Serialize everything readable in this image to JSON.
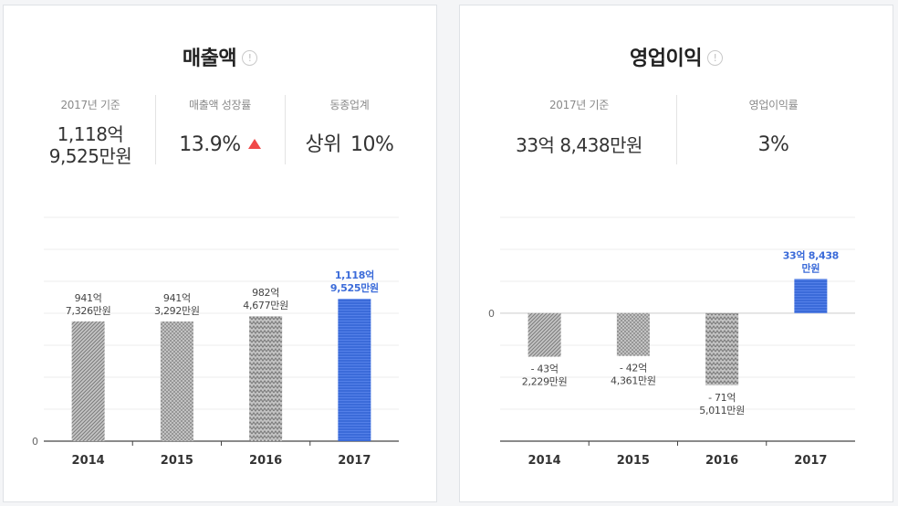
{
  "revenue": {
    "title": "매출액",
    "info_icon": "info-icon",
    "info_glyph": "!",
    "stats": [
      {
        "label": "2017년 기준",
        "lines": [
          "1,118억",
          "9,525만원"
        ]
      },
      {
        "label": "매출액 성장률",
        "value": "13.9%",
        "trend_icon": "up-triangle-icon",
        "trend_color": "#f04848"
      },
      {
        "label": "동종업계",
        "prefix": "상위",
        "value": "10%"
      }
    ]
  },
  "profit": {
    "title": "영업이익",
    "info_icon": "info-icon",
    "info_glyph": "!",
    "stats": [
      {
        "label": "2017년 기준",
        "value": "33억 8,438만원"
      },
      {
        "label": "영업이익률",
        "value": "3%"
      }
    ]
  },
  "colors": {
    "gray_bar": "#a8a8a8",
    "highlight_bar": "#3b6bd9",
    "highlight_text": "#3b6bd9"
  },
  "chart_data": [
    {
      "type": "bar",
      "categories": [
        "2014",
        "2015",
        "2016",
        "2017"
      ],
      "values": [
        941.7326,
        941.3292,
        982.4677,
        1118.9525
      ],
      "value_labels": [
        [
          "941억",
          "7,326만원"
        ],
        [
          "941억",
          "3,292만원"
        ],
        [
          "982억",
          "4,677만원"
        ],
        [
          "1,118억",
          "9,525만원"
        ]
      ],
      "bar_patterns": [
        "diagonal",
        "dots",
        "zigzag",
        "solid-highlight"
      ],
      "highlight_index": 3,
      "zero_label": "0",
      "ylim": [
        0,
        1760
      ],
      "grid": true,
      "title": "",
      "xlabel": "",
      "ylabel": ""
    },
    {
      "type": "bar",
      "categories": [
        "2014",
        "2015",
        "2016",
        "2017"
      ],
      "values": [
        -43.2229,
        -42.4361,
        -71.5011,
        33.8438
      ],
      "value_labels": [
        [
          "- 43억",
          "2,229만원"
        ],
        [
          "- 42억",
          "4,361만원"
        ],
        [
          "- 71억",
          "5,011만원"
        ],
        [
          "33억 8,438",
          "만원"
        ]
      ],
      "bar_patterns": [
        "diagonal",
        "dots",
        "zigzag",
        "solid-highlight"
      ],
      "highlight_index": 3,
      "zero_label": "0",
      "ylim": [
        -127,
        95
      ],
      "grid": true,
      "title": "",
      "xlabel": "",
      "ylabel": ""
    }
  ]
}
